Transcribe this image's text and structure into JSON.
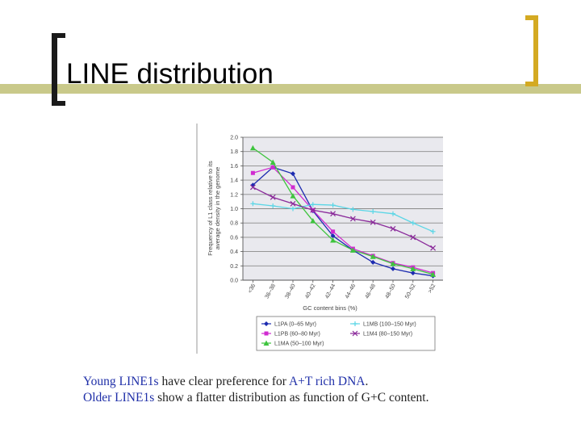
{
  "slide": {
    "title": "LINE distribution"
  },
  "caption": {
    "line1": [
      {
        "text": "Young LINE1s",
        "style": "blue"
      },
      {
        "text": " have clear preference for ",
        "style": "dark"
      },
      {
        "text": "A+T rich DNA",
        "style": "blue"
      },
      {
        "text": ".",
        "style": "dark"
      }
    ],
    "line2": [
      {
        "text": "Older LINE1s",
        "style": "blue"
      },
      {
        "text": " show a flatter distribution as function of G+C content.",
        "style": "dark"
      }
    ]
  },
  "colors": {
    "accent_bar": "#c9c98a",
    "bracket": "#1a1a1a",
    "gold_bracket": "#d4aa22",
    "plot_bg": "#e9e9ee"
  },
  "chart_data": {
    "type": "line",
    "xlabel": "GC content bins (%)",
    "ylabel": "Frequency of L1 class relative to its average density in the genome",
    "ylabel_lines": [
      "Frequency of L1 class relative to its",
      "average density in the genome"
    ],
    "ylim": [
      0,
      2.0
    ],
    "yticks": [
      "0.0",
      "0.2",
      "0.4",
      "0.6",
      "0.8",
      "1.0",
      "1.2",
      "1.4",
      "1.6",
      "1.8",
      "2.0"
    ],
    "categories": [
      "<36",
      "36–38",
      "38–40",
      "40–42",
      "42–44",
      "44–46",
      "46–48",
      "48–50",
      "50–52",
      ">52"
    ],
    "grid": true,
    "legend_position": "bottom",
    "series": [
      {
        "name": "L1PA (0–65 Myr)",
        "color": "#1c2bb0",
        "marker": "diamond",
        "values": [
          1.33,
          1.58,
          1.49,
          0.97,
          0.62,
          0.42,
          0.25,
          0.16,
          0.1,
          0.06
        ]
      },
      {
        "name": "L1PB (60–80 Myr)",
        "color": "#d02bd0",
        "marker": "square",
        "values": [
          1.5,
          1.58,
          1.3,
          0.98,
          0.68,
          0.44,
          0.34,
          0.24,
          0.18,
          0.1
        ]
      },
      {
        "name": "L1MA (50–100 Myr)",
        "color": "#3ec43e",
        "marker": "triangle",
        "values": [
          1.85,
          1.65,
          1.18,
          0.83,
          0.56,
          0.42,
          0.33,
          0.23,
          0.16,
          0.08
        ]
      },
      {
        "name": "L1MB (100–150 Myr)",
        "color": "#5ad6e6",
        "marker": "cross",
        "values": [
          1.07,
          1.04,
          1.0,
          1.06,
          1.05,
          0.99,
          0.96,
          0.93,
          0.8,
          0.68
        ]
      },
      {
        "name": "L1M4 (80–150 Myr)",
        "color": "#8a2a9a",
        "marker": "x",
        "values": [
          1.3,
          1.16,
          1.07,
          0.98,
          0.93,
          0.86,
          0.81,
          0.72,
          0.6,
          0.45
        ]
      }
    ]
  }
}
